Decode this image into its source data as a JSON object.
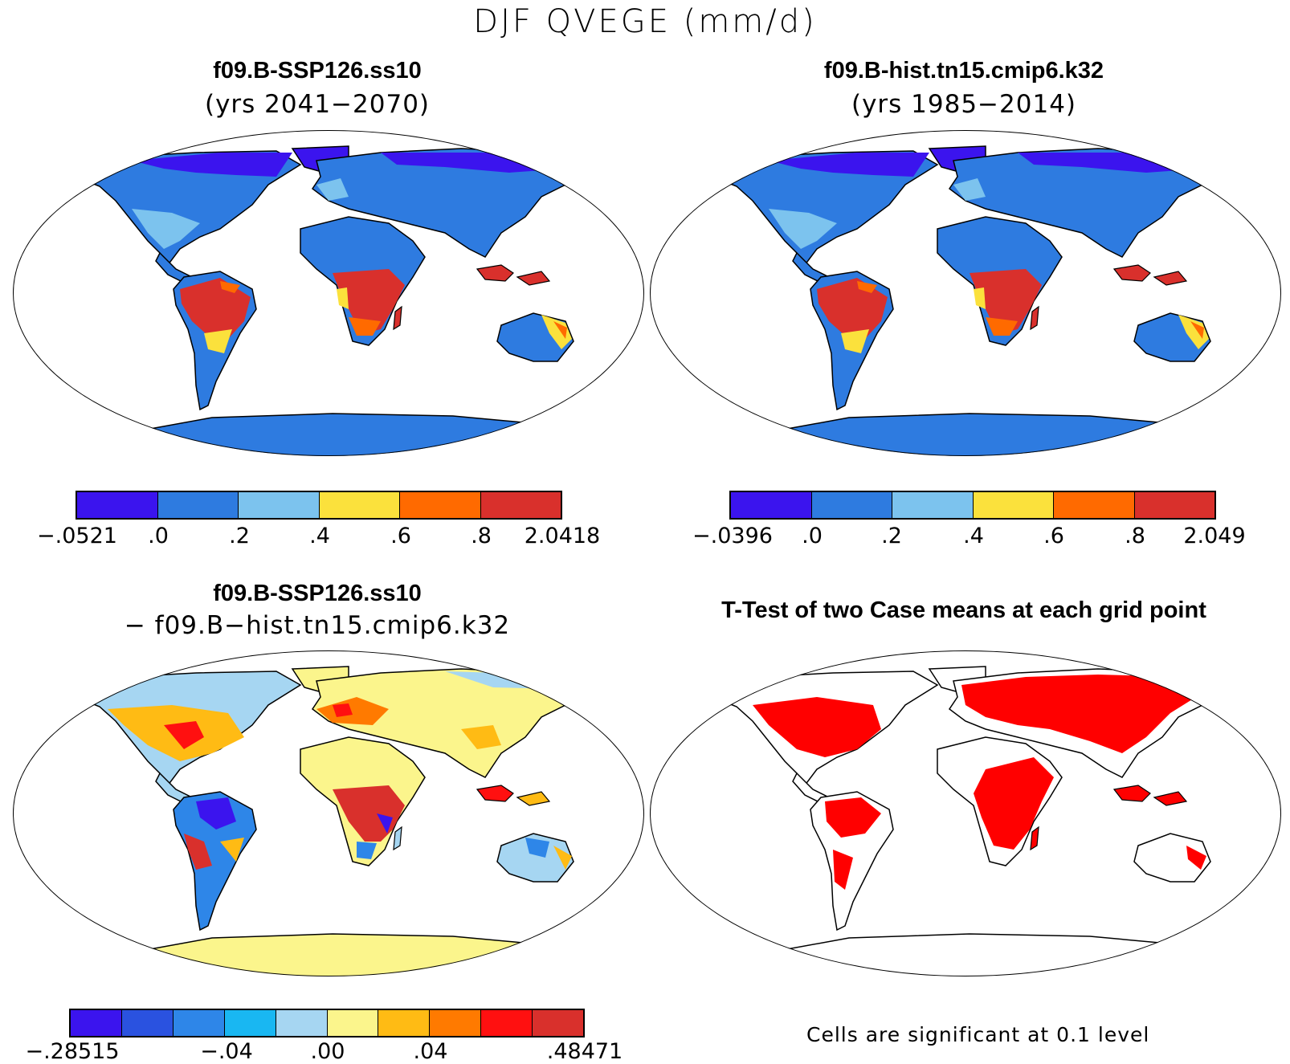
{
  "figure_title": "DJF QVEGE (mm/d)",
  "panels": {
    "top_left": {
      "title": "f09.B-SSP126.ss10",
      "subtitle": "(yrs 2041−2070)",
      "colorbar": {
        "colors": [
          "#3b14ee",
          "#2e7be0",
          "#7cc3ee",
          "#fbe13c",
          "#ff6a00",
          "#d9302c"
        ],
        "labels": [
          "−.0521",
          ".0",
          ".2",
          ".4",
          ".6",
          ".8",
          "2.0418"
        ]
      }
    },
    "top_right": {
      "title": "f09.B-hist.tn15.cmip6.k32",
      "subtitle": "(yrs 1985−2014)",
      "colorbar": {
        "colors": [
          "#3b14ee",
          "#2e7be0",
          "#7cc3ee",
          "#fbe13c",
          "#ff6a00",
          "#d9302c"
        ],
        "labels": [
          "−.0396",
          ".0",
          ".2",
          ".4",
          ".6",
          ".8",
          "2.049"
        ]
      }
    },
    "bottom_left": {
      "title": "f09.B-SSP126.ss10",
      "subtitle": "− f09.B−hist.tn15.cmip6.k32",
      "colorbar": {
        "colors": [
          "#3b14ee",
          "#2a52e0",
          "#2e86e8",
          "#19b7f2",
          "#a6d6f2",
          "#fbf58c",
          "#ffbb14",
          "#ff7a00",
          "#ff1010",
          "#d9302c"
        ],
        "labels": [
          "−.28515",
          "−.04",
          ".00",
          ".04",
          ".48471"
        ]
      }
    },
    "bottom_right": {
      "title": "T-Test of two Case means at each grid point",
      "note": "Cells are significant at 0.1 level",
      "color": "#ff0000"
    }
  }
}
